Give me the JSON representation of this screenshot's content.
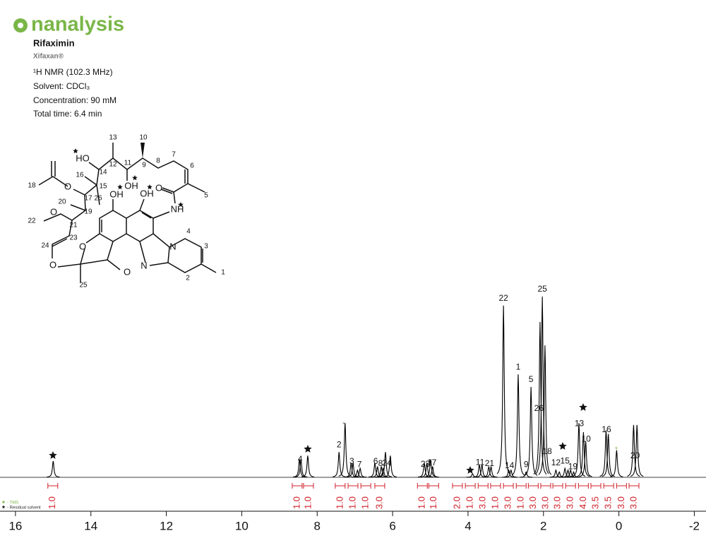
{
  "logo": "nanalysis",
  "header": {
    "compound": "Rifaximin",
    "brand": "Xifaxan®",
    "info": [
      "¹H NMR (102.3 MHz)",
      "Solvent: CDCl₃",
      "Concentration: 90 mM",
      "Total time: 6.4 min"
    ]
  },
  "structure": {
    "labels": [
      "13",
      "10",
      "HO",
      "14",
      "12",
      "11",
      "9",
      "8",
      "7",
      "6",
      "16",
      "15",
      "OH",
      "18",
      "O",
      "17",
      "26",
      "OH",
      "OH",
      "O",
      "5",
      "20",
      "19",
      "NH",
      "22",
      "O",
      "21",
      "4",
      "N",
      "3",
      "24",
      "23",
      "O",
      "O",
      "N",
      "O",
      "1",
      "2",
      "25"
    ]
  },
  "legend": [
    "- TMS",
    "- Residual solvent"
  ],
  "chart_data": {
    "type": "line",
    "xlim": [
      16.41,
      -2.31
    ],
    "xticks": [
      16,
      14,
      12,
      10,
      8,
      6,
      4,
      2,
      0,
      -2
    ],
    "color": "#000000",
    "peaks": {
      "ppm": [
        15.0,
        8.47,
        8.43,
        8.25,
        7.42,
        7.26,
        7.1,
        7.05,
        6.93,
        6.86,
        6.47,
        6.4,
        6.3,
        6.25,
        6.19,
        6.06,
        5.16,
        5.09,
        4.99,
        4.94,
        3.88,
        3.7,
        3.63,
        3.45,
        3.39,
        3.06,
        2.92,
        2.86,
        2.67,
        2.46,
        2.33,
        2.09,
        2.03,
        1.96,
        1.67,
        1.58,
        1.43,
        1.35,
        1.28,
        1.2,
        1.06,
        0.94,
        0.88,
        0.34,
        0.28,
        0.06,
        -0.39,
        -0.48
      ],
      "height": [
        9,
        10,
        10,
        12,
        14,
        30,
        8,
        8,
        4,
        5,
        8,
        6,
        6,
        5,
        14,
        12,
        8,
        8,
        10,
        6,
        2,
        7,
        7,
        6,
        6,
        95,
        4,
        4,
        57,
        3,
        50,
        86,
        100,
        73,
        4,
        3,
        5,
        4,
        4,
        3,
        30,
        25,
        20,
        26,
        24,
        15,
        29,
        29
      ]
    },
    "peak_labels": {
      "labels": [
        "4",
        "2",
        "3",
        "7",
        "6",
        "8",
        "24",
        "23",
        "17",
        "11",
        "21",
        "14",
        "22",
        "1",
        "9",
        "5",
        "26",
        "25",
        "18",
        "12",
        "15",
        "19",
        "13",
        "10",
        "16",
        "20"
      ],
      "ppm": [
        8.45,
        7.42,
        7.08,
        6.88,
        6.45,
        6.32,
        6.15,
        5.13,
        4.96,
        3.68,
        3.43,
        2.9,
        3.06,
        2.67,
        2.46,
        2.33,
        2.12,
        2.03,
        1.9,
        1.67,
        1.43,
        1.22,
        1.05,
        0.87,
        0.33,
        -0.43
      ]
    },
    "integrals": {
      "ppm": [
        15.01,
        8.53,
        8.23,
        7.39,
        7.05,
        6.71,
        6.34,
        5.21,
        4.91,
        4.28,
        3.94,
        3.6,
        3.27,
        2.93,
        2.59,
        2.27,
        1.94,
        1.62,
        1.28,
        0.94,
        0.61,
        0.27,
        -0.07,
        -0.4
      ],
      "values": [
        1,
        1,
        1,
        1,
        1,
        1,
        3,
        1,
        1,
        2,
        1,
        3,
        1,
        3,
        1,
        3,
        3,
        3,
        3,
        4,
        3.5,
        3.5,
        3,
        3
      ],
      "value_labels": [
        "1.0",
        "1.0",
        "1.0",
        "1.0",
        "1.0",
        "1.0",
        "3.0",
        "1.0",
        "1.0",
        "2.0",
        "1.0",
        "3.0",
        "1.0",
        "3.0",
        "1.0",
        "3.0",
        "3.0",
        "3.0",
        "3.0",
        "4.0",
        "3.5",
        "3.5",
        "3.0",
        "3.0"
      ],
      "color": "#d0202a"
    }
  }
}
